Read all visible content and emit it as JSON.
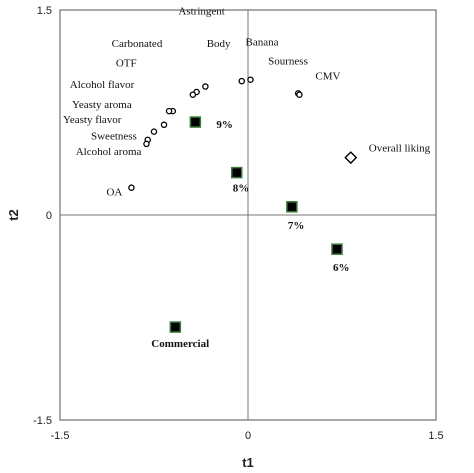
{
  "chart_data": {
    "type": "scatter",
    "xlabel": "t1",
    "ylabel": "t2",
    "xlim": [
      -1.5,
      1.5
    ],
    "ylim": [
      -1.5,
      1.5
    ],
    "x_ticks": [
      "-1.5",
      "0",
      "1.5"
    ],
    "y_ticks": [
      "1.5",
      "0",
      "-1.5"
    ],
    "grid": false,
    "zero_lines": true,
    "series": [
      {
        "marker": "open-circle",
        "color": "#000000",
        "points": [
          {
            "label": "Astringent",
            "x": -0.34,
            "y": 0.94
          },
          {
            "label": "Body",
            "x": -0.05,
            "y": 0.98
          },
          {
            "label": "Banana",
            "x": 0.02,
            "y": 0.99
          },
          {
            "label": "Carbonated",
            "x": -0.41,
            "y": 0.9
          },
          {
            "label": "OTF",
            "x": -0.44,
            "y": 0.88
          },
          {
            "label": "Sourness",
            "x": 0.4,
            "y": 0.89
          },
          {
            "label": "CMV",
            "x": 0.41,
            "y": 0.88
          },
          {
            "label": "Alcohol flavor",
            "x": -0.6,
            "y": 0.76
          },
          {
            "label": "Yeasty aroma",
            "x": -0.63,
            "y": 0.76
          },
          {
            "label": "Yeasty flavor",
            "x": -0.67,
            "y": 0.66
          },
          {
            "label": "Sweetness",
            "x": -0.75,
            "y": 0.61
          },
          {
            "label": "Alcohol aroma",
            "x": -0.8,
            "y": 0.55
          },
          {
            "label": "",
            "x": -0.81,
            "y": 0.52
          },
          {
            "label": "OA",
            "x": -0.93,
            "y": 0.2
          }
        ]
      },
      {
        "marker": "filled-square",
        "color": "#000000",
        "edge_color": "#3a7a3a",
        "points": [
          {
            "label": "9%",
            "x": -0.42,
            "y": 0.68
          },
          {
            "label": "8%",
            "x": -0.09,
            "y": 0.31
          },
          {
            "label": "7%",
            "x": 0.35,
            "y": 0.06
          },
          {
            "label": "6%",
            "x": 0.71,
            "y": -0.25
          },
          {
            "label": "Commercial",
            "x": -0.58,
            "y": -0.82
          }
        ]
      },
      {
        "marker": "open-diamond",
        "color": "#000000",
        "points": [
          {
            "label": "Overall liking",
            "x": 0.82,
            "y": 0.42
          }
        ]
      }
    ]
  }
}
